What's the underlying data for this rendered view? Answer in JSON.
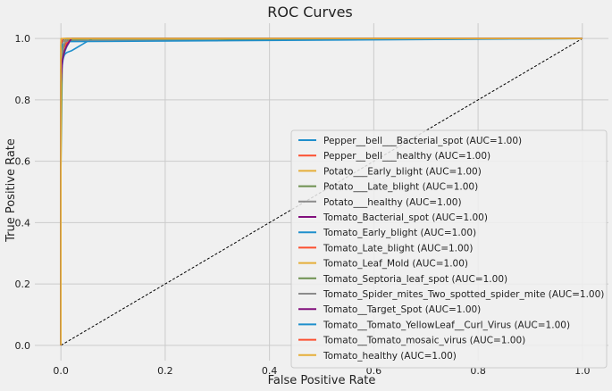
{
  "chart_data": {
    "type": "line",
    "title": "ROC Curves",
    "xlabel": "False Positive Rate",
    "ylabel": "True Positive Rate",
    "xlim": [
      -0.05,
      1.05
    ],
    "ylim": [
      -0.05,
      1.05
    ],
    "xticks": [
      "0.0",
      "0.2",
      "0.4",
      "0.6",
      "0.8",
      "1.0"
    ],
    "yticks": [
      "0.0",
      "0.2",
      "0.4",
      "0.6",
      "0.8",
      "1.0"
    ],
    "grid": true,
    "legend_position": "bottom-right",
    "diagonal": {
      "x": [
        0,
        1
      ],
      "y": [
        0,
        1
      ],
      "color": "#000000",
      "style": "dashed"
    },
    "series": [
      {
        "name": "Pepper__bell___Bacterial_spot (AUC=1.00)",
        "color": "#1f8fcc",
        "x": [
          0,
          0,
          0.002,
          0.005,
          0.008,
          0.012,
          0.02,
          0.03,
          0.04,
          0.05,
          0.06,
          1
        ],
        "y": [
          0,
          0.9,
          0.92,
          0.94,
          0.95,
          0.955,
          0.96,
          0.97,
          0.98,
          0.99,
          1.0,
          1.0
        ]
      },
      {
        "name": "Pepper__bell___healthy (AUC=1.00)",
        "color": "#fc4f30",
        "x": [
          0,
          0,
          0.005,
          0.01,
          0.02,
          1
        ],
        "y": [
          0,
          0.95,
          0.97,
          0.985,
          1.0,
          1.0
        ]
      },
      {
        "name": "Potato___Early_blight (AUC=1.00)",
        "color": "#e5ae38",
        "x": [
          0,
          0,
          0.01,
          1
        ],
        "y": [
          0,
          0.99,
          1.0,
          1.0
        ]
      },
      {
        "name": "Potato___Late_blight (AUC=1.00)",
        "color": "#6d904f",
        "x": [
          0,
          0,
          0.003,
          0.01,
          0.3,
          1
        ],
        "y": [
          0,
          0.58,
          0.99,
          0.995,
          0.995,
          1.0
        ]
      },
      {
        "name": "Potato___healthy (AUC=1.00)",
        "color": "#8b8b8b",
        "x": [
          0,
          0,
          0.05,
          0.3,
          0.3,
          1
        ],
        "y": [
          0,
          0.99,
          0.993,
          0.993,
          1.0,
          1.0
        ]
      },
      {
        "name": "Tomato_Bacterial_spot (AUC=1.00)",
        "color": "#810f7c",
        "x": [
          0,
          0,
          0.002,
          0.005,
          0.01,
          0.015,
          0.02,
          1
        ],
        "y": [
          0,
          0.85,
          0.92,
          0.95,
          0.97,
          0.985,
          1.0,
          1.0
        ]
      },
      {
        "name": "Tomato_Early_blight (AUC=1.00)",
        "color": "#1f8fcc",
        "x": [
          0,
          0,
          0.004,
          0.008,
          0.015,
          1
        ],
        "y": [
          0,
          0.88,
          0.93,
          0.96,
          0.99,
          1.0
        ]
      },
      {
        "name": "Tomato_Late_blight (AUC=1.00)",
        "color": "#fc4f30",
        "x": [
          0,
          0,
          0.005,
          0.01,
          0.02,
          1
        ],
        "y": [
          0,
          0.9,
          0.95,
          0.98,
          1.0,
          1.0
        ]
      },
      {
        "name": "Tomato_Leaf_Mold (AUC=1.00)",
        "color": "#e5ae38",
        "x": [
          0,
          0,
          0.008,
          1
        ],
        "y": [
          0,
          0.98,
          1.0,
          1.0
        ]
      },
      {
        "name": "Tomato_Septoria_leaf_spot (AUC=1.00)",
        "color": "#6d904f",
        "x": [
          0,
          0,
          0.005,
          0.01,
          1
        ],
        "y": [
          0,
          0.9,
          0.97,
          1.0,
          1.0
        ]
      },
      {
        "name": "Tomato_Spider_mites_Two_spotted_spider_mite (AUC=1.00)",
        "color": "#8b8b8b",
        "x": [
          0,
          0,
          0.005,
          0.012,
          1
        ],
        "y": [
          0,
          0.93,
          0.98,
          1.0,
          1.0
        ]
      },
      {
        "name": "Tomato__Target_Spot (AUC=1.00)",
        "color": "#810f7c",
        "x": [
          0,
          0,
          0.003,
          0.007,
          0.012,
          0.02,
          1
        ],
        "y": [
          0,
          0.86,
          0.93,
          0.96,
          0.98,
          1.0,
          1.0
        ]
      },
      {
        "name": "Tomato__Tomato_YellowLeaf__Curl_Virus (AUC=1.00)",
        "color": "#1f8fcc",
        "x": [
          0,
          0,
          0.003,
          0.006,
          1
        ],
        "y": [
          0,
          0.96,
          0.99,
          1.0,
          1.0
        ]
      },
      {
        "name": "Tomato__Tomato_mosaic_virus (AUC=1.00)",
        "color": "#fc4f30",
        "x": [
          0,
          0,
          0.004,
          1
        ],
        "y": [
          0,
          0.98,
          1.0,
          1.0
        ]
      },
      {
        "name": "Tomato_healthy (AUC=1.00)",
        "color": "#e5ae38",
        "x": [
          0,
          0,
          1
        ],
        "y": [
          0,
          1.0,
          1.0
        ]
      }
    ]
  }
}
